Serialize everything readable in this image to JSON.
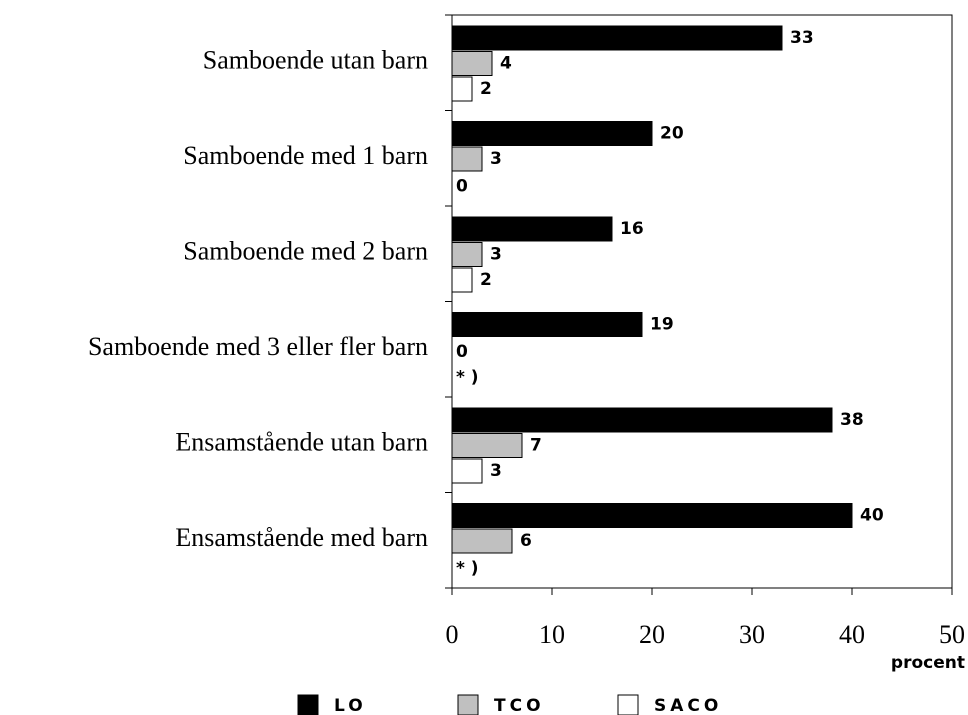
{
  "chart_data": {
    "type": "bar",
    "orientation": "horizontal",
    "categories": [
      "Samboende utan barn",
      "Samboende med 1 barn",
      "Samboende med 2 barn",
      "Samboende med 3 eller fler barn",
      "Ensamstående utan barn",
      "Ensamstående med barn"
    ],
    "series": [
      {
        "name": "LO",
        "color": "#000000",
        "values": [
          33,
          20,
          16,
          19,
          38,
          40
        ]
      },
      {
        "name": "TCO",
        "color": "#c0c0c0",
        "values": [
          4,
          3,
          3,
          0,
          7,
          6
        ]
      },
      {
        "name": "SACO",
        "color": "#ffffff",
        "values": [
          2,
          0,
          2,
          null,
          3,
          null
        ],
        "value_labels": [
          "2",
          "0",
          "2",
          "* )",
          "3",
          "* )"
        ]
      }
    ],
    "xlim": [
      0,
      50
    ],
    "xticks": [
      0,
      10,
      20,
      30,
      40,
      50
    ],
    "xlabel": "procent",
    "grid": false,
    "legend": "bottom"
  }
}
